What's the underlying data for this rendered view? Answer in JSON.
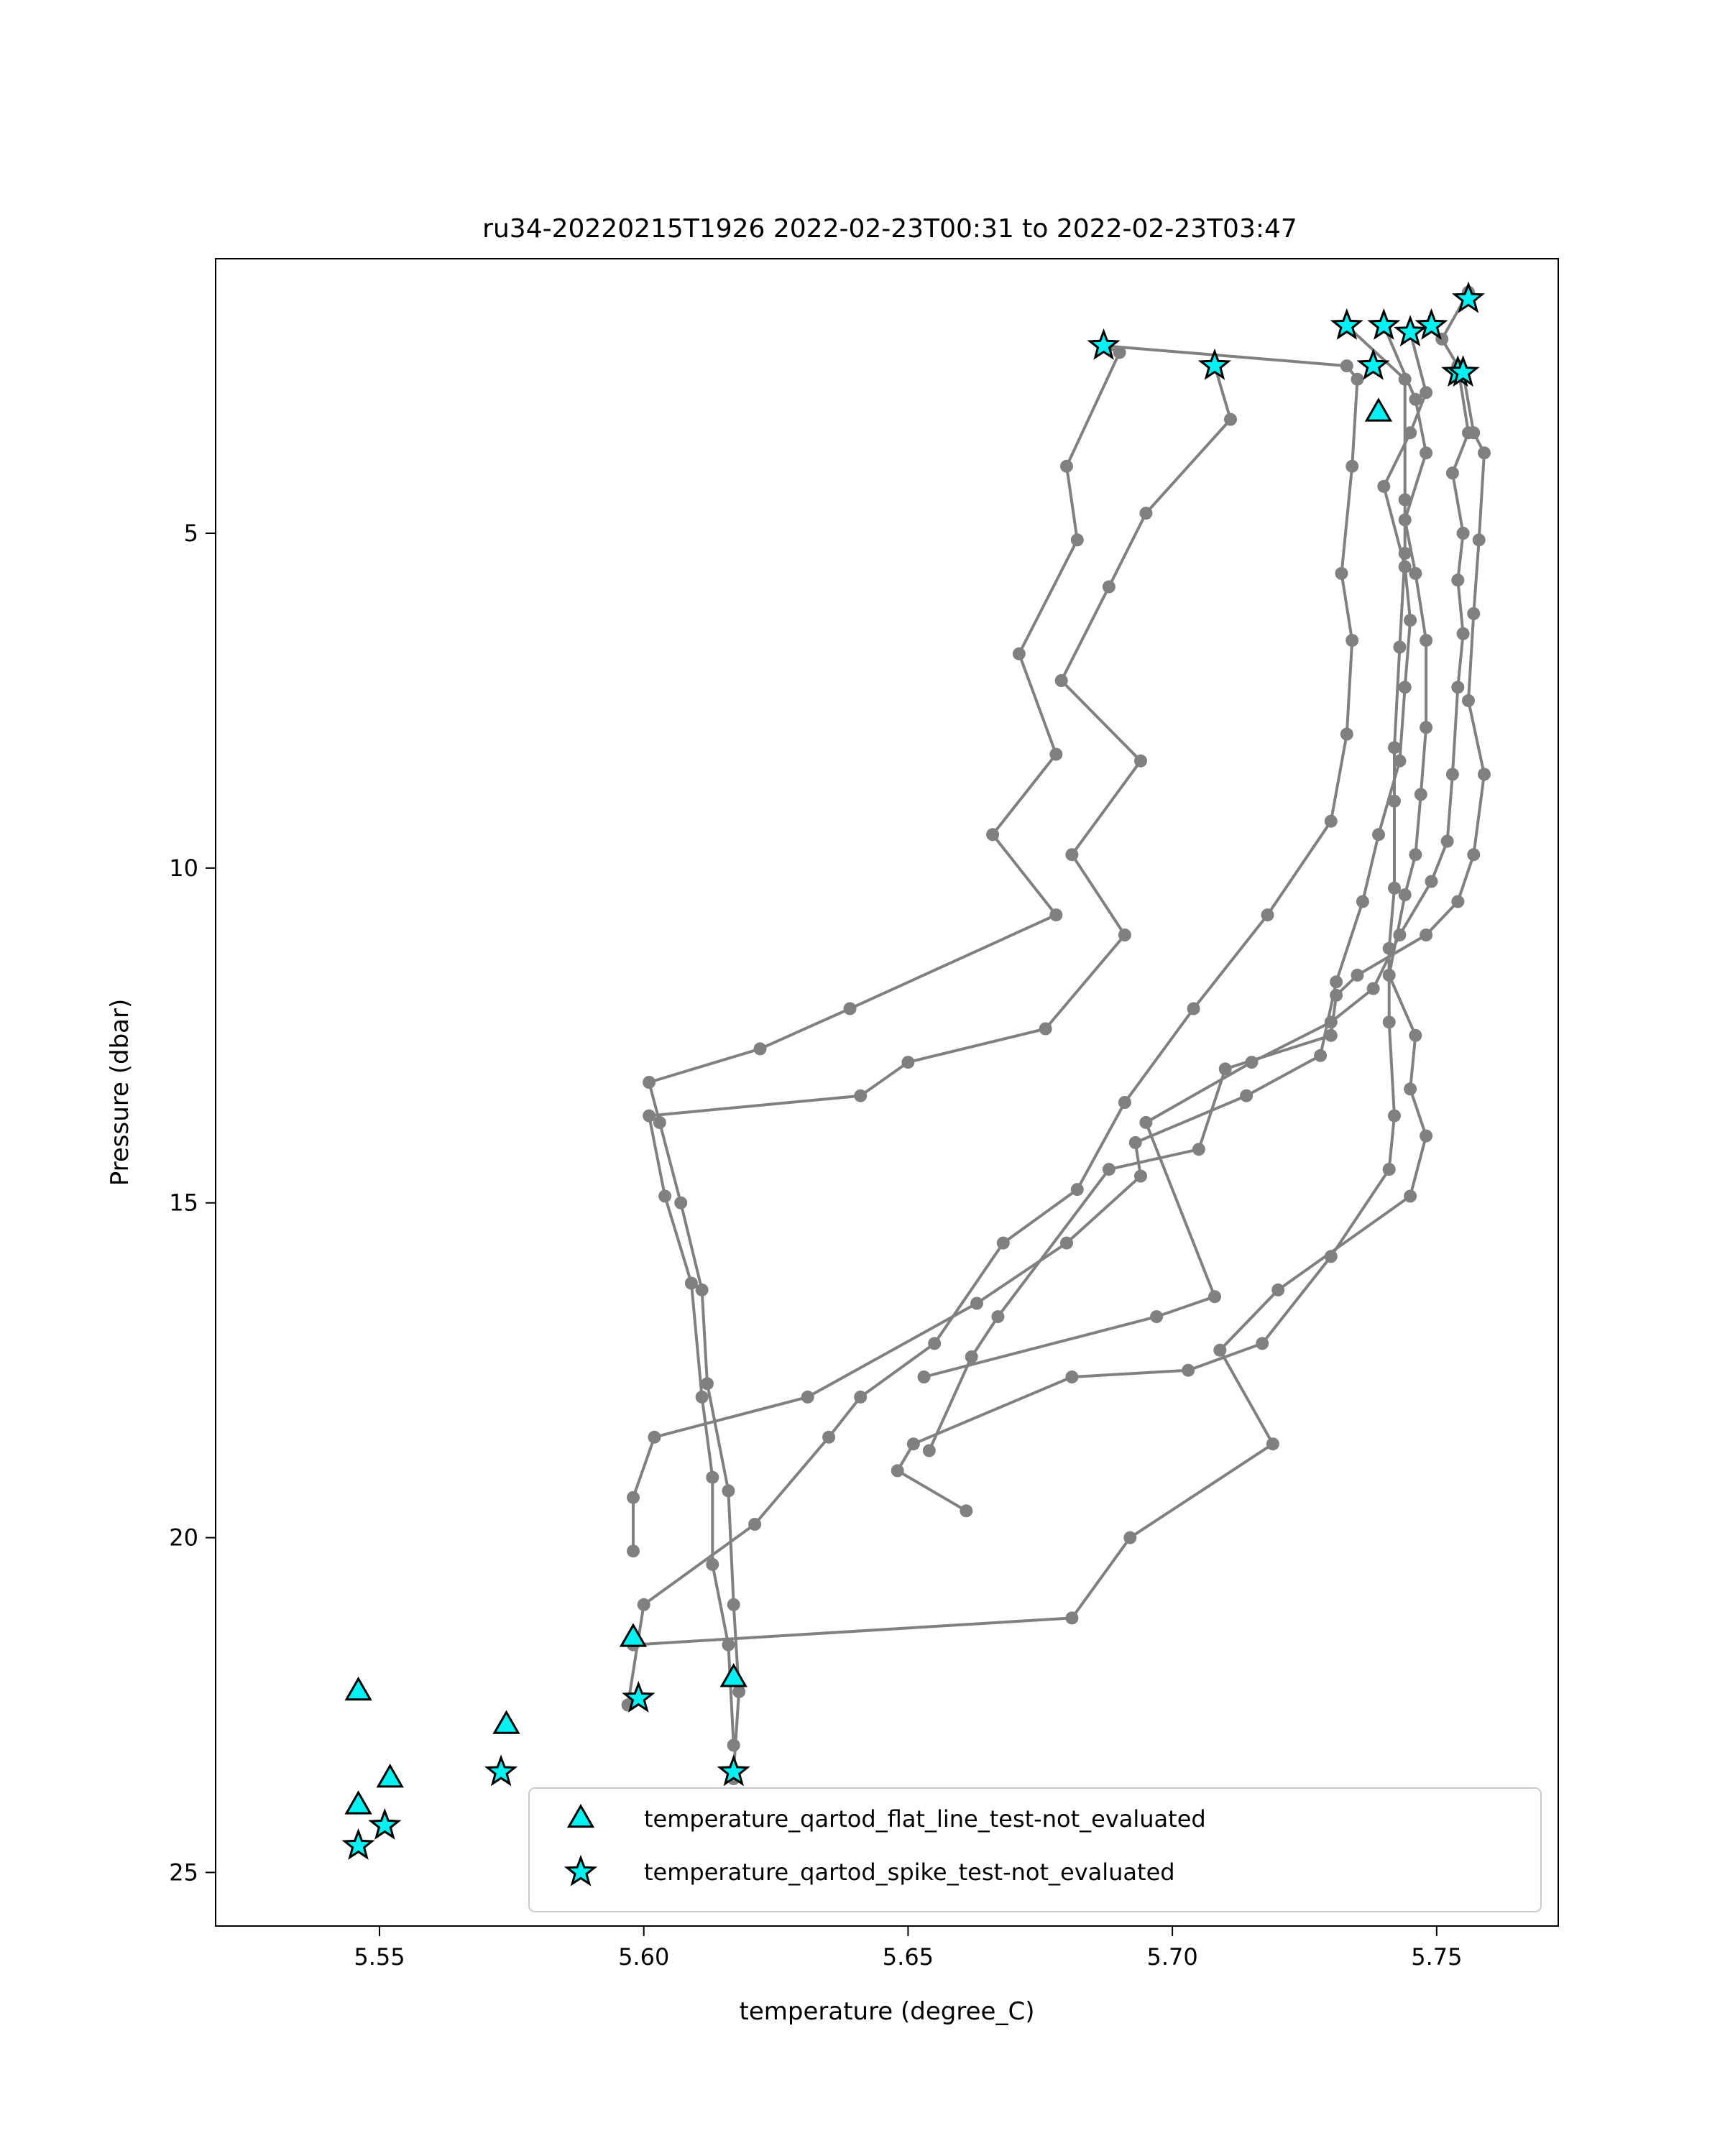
{
  "chart_data": {
    "type": "scatter",
    "title": "ru34-20220215T1926 2022-02-23T00:31 to 2022-02-23T03:47",
    "xlabel": "temperature (degree_C)",
    "ylabel": "Pressure (dbar)",
    "xlim": [
      5.519,
      5.773
    ],
    "ylim": [
      25.8,
      0.9
    ],
    "y_inverted": true,
    "grid": false,
    "xticks": [
      5.55,
      5.6,
      5.65,
      5.7,
      5.75
    ],
    "xtick_labels": [
      "5.55",
      "5.60",
      "5.65",
      "5.70",
      "5.75"
    ],
    "yticks": [
      5,
      10,
      15,
      20,
      25
    ],
    "ytick_labels": [
      "5",
      "10",
      "15",
      "20",
      "25"
    ],
    "legend_position": "lower-right",
    "colors": {
      "profile_line": "#808080",
      "marker_fill": "#00f2f2",
      "marker_edge": "#000000"
    },
    "profiles": [
      {
        "points": [
          [
            5.687,
            2.2
          ],
          [
            5.69,
            2.3
          ],
          [
            5.68,
            4.0
          ],
          [
            5.682,
            5.1
          ],
          [
            5.671,
            6.8
          ],
          [
            5.678,
            8.3
          ],
          [
            5.666,
            9.5
          ],
          [
            5.678,
            10.7
          ],
          [
            5.639,
            12.1
          ],
          [
            5.622,
            12.7
          ],
          [
            5.601,
            13.2
          ],
          [
            5.603,
            13.8
          ],
          [
            5.607,
            15.0
          ],
          [
            5.611,
            16.3
          ],
          [
            5.612,
            17.7
          ],
          [
            5.616,
            19.3
          ],
          [
            5.617,
            21.0
          ],
          [
            5.618,
            22.3
          ],
          [
            5.617,
            23.5
          ],
          [
            5.617,
            23.6
          ]
        ]
      },
      {
        "points": [
          [
            5.708,
            2.5
          ],
          [
            5.711,
            3.3
          ],
          [
            5.695,
            4.7
          ],
          [
            5.688,
            5.8
          ],
          [
            5.679,
            7.2
          ],
          [
            5.694,
            8.4
          ],
          [
            5.681,
            9.8
          ],
          [
            5.691,
            11.0
          ],
          [
            5.676,
            12.4
          ],
          [
            5.65,
            12.9
          ],
          [
            5.641,
            13.4
          ],
          [
            5.601,
            13.7
          ],
          [
            5.604,
            14.9
          ],
          [
            5.609,
            16.2
          ],
          [
            5.611,
            17.9
          ],
          [
            5.613,
            19.1
          ],
          [
            5.613,
            20.4
          ],
          [
            5.616,
            21.6
          ],
          [
            5.617,
            23.1
          ]
        ]
      },
      {
        "points": [
          [
            5.687,
            2.2
          ],
          [
            5.733,
            2.5
          ],
          [
            5.735,
            2.7
          ],
          [
            5.734,
            4.0
          ],
          [
            5.732,
            5.6
          ],
          [
            5.734,
            6.6
          ],
          [
            5.733,
            8.0
          ],
          [
            5.73,
            9.3
          ],
          [
            5.718,
            10.7
          ],
          [
            5.704,
            12.1
          ],
          [
            5.691,
            13.5
          ],
          [
            5.682,
            14.8
          ],
          [
            5.668,
            15.6
          ],
          [
            5.655,
            17.1
          ],
          [
            5.641,
            17.9
          ],
          [
            5.635,
            18.5
          ],
          [
            5.621,
            19.8
          ],
          [
            5.6,
            21.0
          ],
          [
            5.597,
            22.5
          ]
        ]
      },
      {
        "points": [
          [
            5.733,
            1.9
          ],
          [
            5.744,
            2.7
          ],
          [
            5.744,
            4.5
          ],
          [
            5.744,
            5.3
          ],
          [
            5.743,
            6.7
          ],
          [
            5.742,
            8.2
          ],
          [
            5.742,
            9.0
          ],
          [
            5.742,
            10.3
          ],
          [
            5.741,
            11.2
          ],
          [
            5.741,
            12.3
          ],
          [
            5.742,
            13.7
          ],
          [
            5.741,
            14.5
          ],
          [
            5.73,
            15.8
          ],
          [
            5.717,
            17.1
          ],
          [
            5.703,
            17.5
          ],
          [
            5.681,
            17.6
          ],
          [
            5.651,
            18.6
          ],
          [
            5.648,
            19.0
          ],
          [
            5.661,
            19.6
          ]
        ]
      },
      {
        "points": [
          [
            5.74,
            1.9
          ],
          [
            5.746,
            3.0
          ],
          [
            5.748,
            3.8
          ],
          [
            5.744,
            4.8
          ],
          [
            5.746,
            5.6
          ],
          [
            5.748,
            6.6
          ],
          [
            5.748,
            7.9
          ],
          [
            5.747,
            8.9
          ],
          [
            5.746,
            9.8
          ],
          [
            5.744,
            10.4
          ],
          [
            5.741,
            11.6
          ],
          [
            5.746,
            12.5
          ],
          [
            5.745,
            13.3
          ],
          [
            5.748,
            14.0
          ],
          [
            5.745,
            14.9
          ],
          [
            5.72,
            16.3
          ],
          [
            5.709,
            17.2
          ],
          [
            5.719,
            18.6
          ],
          [
            5.692,
            20.0
          ],
          [
            5.681,
            21.2
          ],
          [
            5.598,
            21.6
          ]
        ]
      },
      {
        "points": [
          [
            5.745,
            2.0
          ],
          [
            5.748,
            2.9
          ],
          [
            5.745,
            3.5
          ],
          [
            5.74,
            4.3
          ],
          [
            5.744,
            5.5
          ],
          [
            5.745,
            6.3
          ],
          [
            5.744,
            7.3
          ],
          [
            5.743,
            8.4
          ],
          [
            5.739,
            9.5
          ],
          [
            5.736,
            10.5
          ],
          [
            5.731,
            11.7
          ],
          [
            5.728,
            12.8
          ],
          [
            5.714,
            13.4
          ],
          [
            5.693,
            14.1
          ],
          [
            5.694,
            14.6
          ],
          [
            5.68,
            15.6
          ],
          [
            5.663,
            16.5
          ],
          [
            5.631,
            17.9
          ],
          [
            5.602,
            18.5
          ],
          [
            5.598,
            19.4
          ],
          [
            5.598,
            20.2
          ]
        ]
      },
      {
        "points": [
          [
            5.756,
            1.4
          ],
          [
            5.751,
            2.1
          ],
          [
            5.754,
            2.5
          ],
          [
            5.756,
            3.5
          ],
          [
            5.753,
            4.1
          ],
          [
            5.755,
            5.0
          ],
          [
            5.754,
            5.7
          ],
          [
            5.755,
            6.5
          ],
          [
            5.754,
            7.3
          ],
          [
            5.753,
            8.6
          ],
          [
            5.752,
            9.6
          ],
          [
            5.749,
            10.2
          ],
          [
            5.743,
            11.0
          ],
          [
            5.738,
            11.8
          ],
          [
            5.73,
            12.3
          ],
          [
            5.715,
            12.9
          ],
          [
            5.695,
            13.8
          ],
          [
            5.708,
            16.4
          ],
          [
            5.697,
            16.7
          ],
          [
            5.653,
            17.6
          ]
        ]
      },
      {
        "points": [
          [
            5.755,
            2.6
          ],
          [
            5.757,
            3.5
          ],
          [
            5.759,
            3.8
          ],
          [
            5.758,
            5.1
          ],
          [
            5.757,
            6.2
          ],
          [
            5.756,
            7.5
          ],
          [
            5.759,
            8.6
          ],
          [
            5.757,
            9.8
          ],
          [
            5.754,
            10.5
          ],
          [
            5.748,
            11.0
          ],
          [
            5.735,
            11.6
          ],
          [
            5.731,
            11.9
          ],
          [
            5.73,
            12.5
          ],
          [
            5.71,
            13.0
          ],
          [
            5.705,
            14.2
          ],
          [
            5.688,
            14.5
          ],
          [
            5.667,
            16.7
          ],
          [
            5.662,
            17.3
          ],
          [
            5.654,
            18.7
          ]
        ]
      }
    ],
    "series": [
      {
        "name": "temperature_qartod_flat_line_test-not_evaluated",
        "marker": "triangle",
        "points": [
          [
            5.739,
            3.2
          ],
          [
            5.598,
            21.5
          ],
          [
            5.617,
            22.1
          ],
          [
            5.546,
            22.3
          ],
          [
            5.574,
            22.8
          ],
          [
            5.552,
            23.6
          ],
          [
            5.546,
            24.0
          ]
        ]
      },
      {
        "name": "temperature_qartod_spike_test-not_evaluated",
        "marker": "star",
        "points": [
          [
            5.687,
            2.2
          ],
          [
            5.708,
            2.5
          ],
          [
            5.733,
            1.9
          ],
          [
            5.74,
            1.9
          ],
          [
            5.745,
            2.0
          ],
          [
            5.749,
            1.9
          ],
          [
            5.756,
            1.5
          ],
          [
            5.738,
            2.5
          ],
          [
            5.754,
            2.6
          ],
          [
            5.755,
            2.6
          ],
          [
            5.599,
            22.4
          ],
          [
            5.573,
            23.5
          ],
          [
            5.617,
            23.5
          ],
          [
            5.551,
            24.3
          ],
          [
            5.546,
            24.6
          ]
        ]
      }
    ]
  }
}
